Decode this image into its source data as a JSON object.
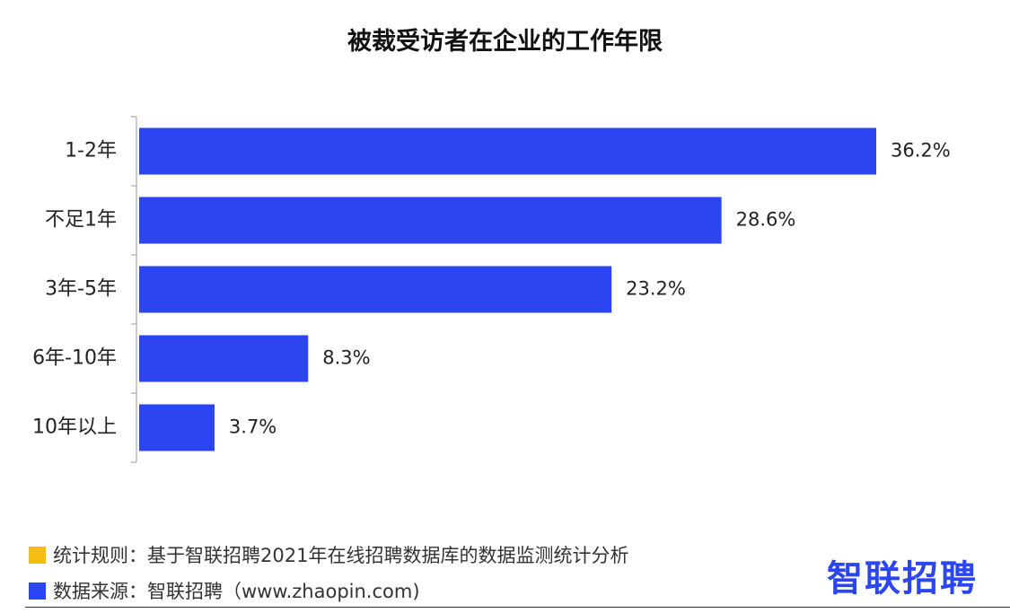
{
  "chart_data": {
    "type": "bar",
    "orientation": "horizontal",
    "title": "被裁受访者在企业的工作年限",
    "categories": [
      "1-2年",
      "不足1年",
      "3年-5年",
      "6年-10年",
      "10年以上"
    ],
    "values": [
      36.2,
      28.6,
      23.2,
      8.3,
      3.7
    ],
    "value_labels": [
      "36.2%",
      "28.6%",
      "23.2%",
      "8.3%",
      "3.7%"
    ],
    "unit": "%",
    "xlim": [
      0,
      36.2
    ],
    "grid": false,
    "legend": "none",
    "bar_color": "#2b45f2"
  },
  "footer": {
    "rule_label": "统计规则：基于智联招聘2021年在线招聘数据库的数据监测统计分析",
    "rule_marker_color": "#f5bd12",
    "source_label": "数据来源：智联招聘（www.zhaopin.com)",
    "source_marker_color": "#2b45f2"
  },
  "brand": {
    "logo_text": "智联招聘",
    "logo_color": "#2b45f2"
  }
}
